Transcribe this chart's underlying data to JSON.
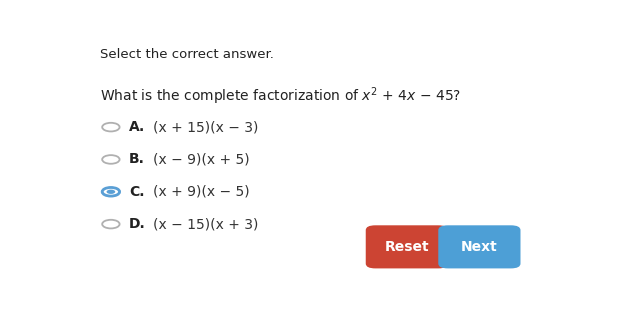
{
  "bg_color": "#ffffff",
  "header_text": "Select the correct answer.",
  "options": [
    {
      "label": "A.",
      "text": "(x + 15)(x − 3)",
      "selected": false
    },
    {
      "label": "B.",
      "text": "(x − 9)(x + 5)",
      "selected": false
    },
    {
      "label": "C.",
      "text": "(x + 9)(x − 5)",
      "selected": true
    },
    {
      "label": "D.",
      "text": "(x − 15)(x + 3)",
      "selected": false
    }
  ],
  "reset_btn": {
    "label": "Reset",
    "color": "#cc4433",
    "text_color": "#ffffff"
  },
  "next_btn": {
    "label": "Next",
    "color": "#4d9fd6",
    "text_color": "#ffffff"
  },
  "font_size_header": 9.5,
  "font_size_question": 10,
  "font_size_option_label": 10,
  "font_size_option_text": 10,
  "font_size_btn": 10
}
